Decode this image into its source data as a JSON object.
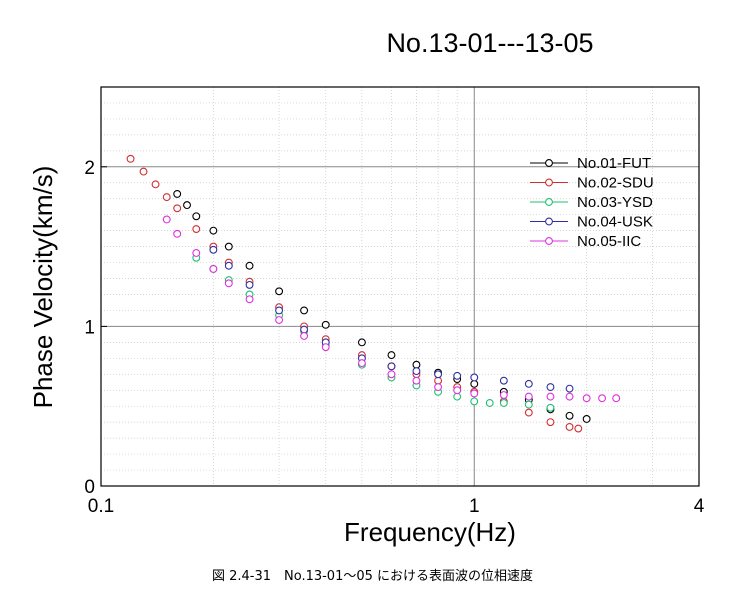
{
  "figure_caption": "図 2.4-31　No.13-01～05 における表面波の位相速度",
  "chart_data": {
    "type": "scatter",
    "title": "No.13-01---13-05",
    "xlabel": "Frequency(Hz)",
    "ylabel": "Phase Velocity(km/s)",
    "x_scale": "log",
    "xlim": [
      0.1,
      4
    ],
    "ylim": [
      0,
      2.5
    ],
    "x_ticks": [
      {
        "value": 0.1,
        "label": "0.1"
      },
      {
        "value": 1,
        "label": "1"
      },
      {
        "value": 4,
        "label": "4"
      }
    ],
    "y_ticks": [
      {
        "value": 0,
        "label": "0"
      },
      {
        "value": 1,
        "label": "1"
      },
      {
        "value": 2,
        "label": "2"
      }
    ],
    "grid": true,
    "legend_position": "top-right",
    "marker": "open-circle",
    "series": [
      {
        "name": "No.01-FUT",
        "color": "#000000",
        "x": [
          0.16,
          0.17,
          0.18,
          0.2,
          0.22,
          0.25,
          0.3,
          0.35,
          0.4,
          0.5,
          0.6,
          0.7,
          0.8,
          0.9,
          1.0,
          1.2,
          1.4,
          1.6,
          1.8,
          2.0
        ],
        "y": [
          1.83,
          1.76,
          1.69,
          1.6,
          1.5,
          1.38,
          1.22,
          1.1,
          1.01,
          0.9,
          0.82,
          0.76,
          0.71,
          0.67,
          0.64,
          0.59,
          0.54,
          0.48,
          0.44,
          0.42
        ]
      },
      {
        "name": "No.02-SDU",
        "color": "#d03030",
        "x": [
          0.12,
          0.13,
          0.14,
          0.15,
          0.16,
          0.18,
          0.2,
          0.22,
          0.25,
          0.3,
          0.35,
          0.4,
          0.5,
          0.6,
          0.7,
          0.8,
          0.9,
          1.0,
          1.2,
          1.4,
          1.6,
          1.8,
          1.9
        ],
        "y": [
          2.05,
          1.97,
          1.89,
          1.81,
          1.74,
          1.61,
          1.5,
          1.4,
          1.28,
          1.12,
          1.0,
          0.92,
          0.82,
          0.75,
          0.7,
          0.66,
          0.62,
          0.59,
          0.53,
          0.46,
          0.4,
          0.37,
          0.36
        ]
      },
      {
        "name": "No.03-YSD",
        "color": "#20c070",
        "x": [
          0.18,
          0.2,
          0.22,
          0.25,
          0.3,
          0.35,
          0.4,
          0.5,
          0.6,
          0.7,
          0.8,
          0.9,
          1.0,
          1.1,
          1.2,
          1.4,
          1.6
        ],
        "y": [
          1.43,
          1.36,
          1.29,
          1.2,
          1.07,
          0.97,
          0.88,
          0.76,
          0.68,
          0.63,
          0.59,
          0.56,
          0.53,
          0.52,
          0.52,
          0.51,
          0.49
        ]
      },
      {
        "name": "No.04-USK",
        "color": "#3030a0",
        "x": [
          0.2,
          0.22,
          0.25,
          0.3,
          0.35,
          0.4,
          0.5,
          0.6,
          0.7,
          0.8,
          0.9,
          1.0,
          1.2,
          1.4,
          1.6,
          1.8
        ],
        "y": [
          1.48,
          1.38,
          1.26,
          1.1,
          0.98,
          0.9,
          0.8,
          0.75,
          0.72,
          0.7,
          0.69,
          0.68,
          0.66,
          0.64,
          0.62,
          0.61
        ]
      },
      {
        "name": "No.05-IIC",
        "color": "#e030e0",
        "x": [
          0.15,
          0.16,
          0.18,
          0.2,
          0.22,
          0.25,
          0.3,
          0.35,
          0.4,
          0.5,
          0.6,
          0.7,
          0.8,
          0.9,
          1.0,
          1.2,
          1.4,
          1.6,
          1.8,
          2.0,
          2.2,
          2.4
        ],
        "y": [
          1.67,
          1.58,
          1.46,
          1.36,
          1.27,
          1.17,
          1.04,
          0.94,
          0.87,
          0.77,
          0.7,
          0.66,
          0.62,
          0.6,
          0.58,
          0.57,
          0.56,
          0.56,
          0.56,
          0.55,
          0.55,
          0.55
        ]
      }
    ]
  }
}
